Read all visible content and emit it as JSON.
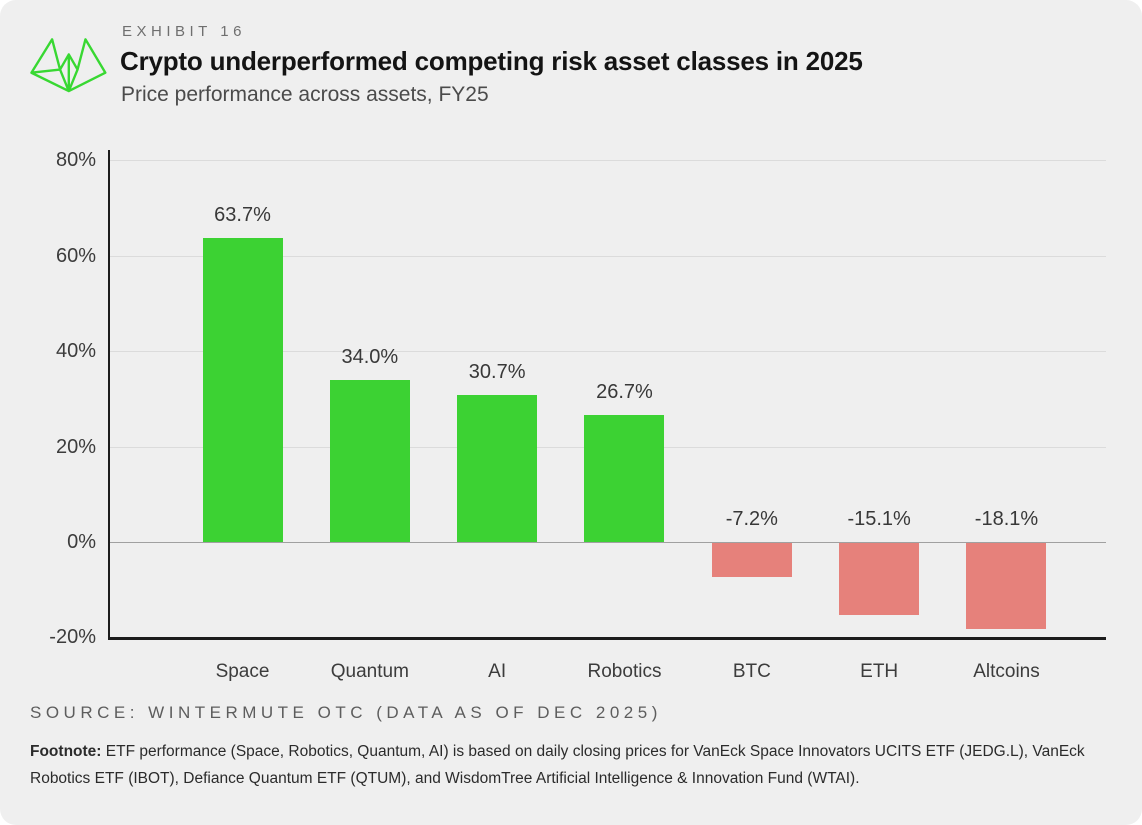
{
  "header": {
    "exhibit_label": "EXHIBIT 16",
    "title": "Crypto underperformed competing risk asset classes in 2025",
    "subtitle": "Price performance across assets, FY25"
  },
  "logo": {
    "name": "wintermute-logo",
    "color": "#38d832"
  },
  "colors": {
    "positive_bar": "#3cd233",
    "negative_bar": "#e6817b",
    "card_background": "#efefef",
    "gridline": "#dbdbdb",
    "zero_line": "#a0a0a0",
    "axis": "#1c1c1c"
  },
  "chart_data": {
    "type": "bar",
    "title": "Crypto underperformed competing risk asset classes in 2025",
    "subtitle": "Price performance across assets, FY25",
    "categories": [
      "Space",
      "Quantum",
      "AI",
      "Robotics",
      "BTC",
      "ETH",
      "Altcoins"
    ],
    "values": [
      63.7,
      34.0,
      30.7,
      26.7,
      -7.2,
      -15.1,
      -18.1
    ],
    "value_labels": [
      "63.7%",
      "34.0%",
      "30.7%",
      "26.7%",
      "-7.2%",
      "-15.1%",
      "-18.1%"
    ],
    "xlabel": "",
    "ylabel": "",
    "ylim": [
      -20,
      80
    ],
    "yticks": [
      80,
      60,
      40,
      20,
      0,
      -20
    ],
    "ytick_labels": [
      "80%",
      "60%",
      "40%",
      "20%",
      "0%",
      "-20%"
    ],
    "grid": true,
    "legend": false
  },
  "footer": {
    "source": "SOURCE: WINTERMUTE OTC (DATA AS OF DEC 2025)",
    "footnote_label": "Footnote:",
    "footnote_text": " ETF performance (Space, Robotics, Quantum, AI) is based on daily closing prices for VanEck Space Innovators UCITS ETF (JEDG.L), VanEck Robotics ETF (IBOT), Defiance Quantum ETF (QTUM), and WisdomTree Artificial Intelligence & Innovation Fund (WTAI)."
  }
}
